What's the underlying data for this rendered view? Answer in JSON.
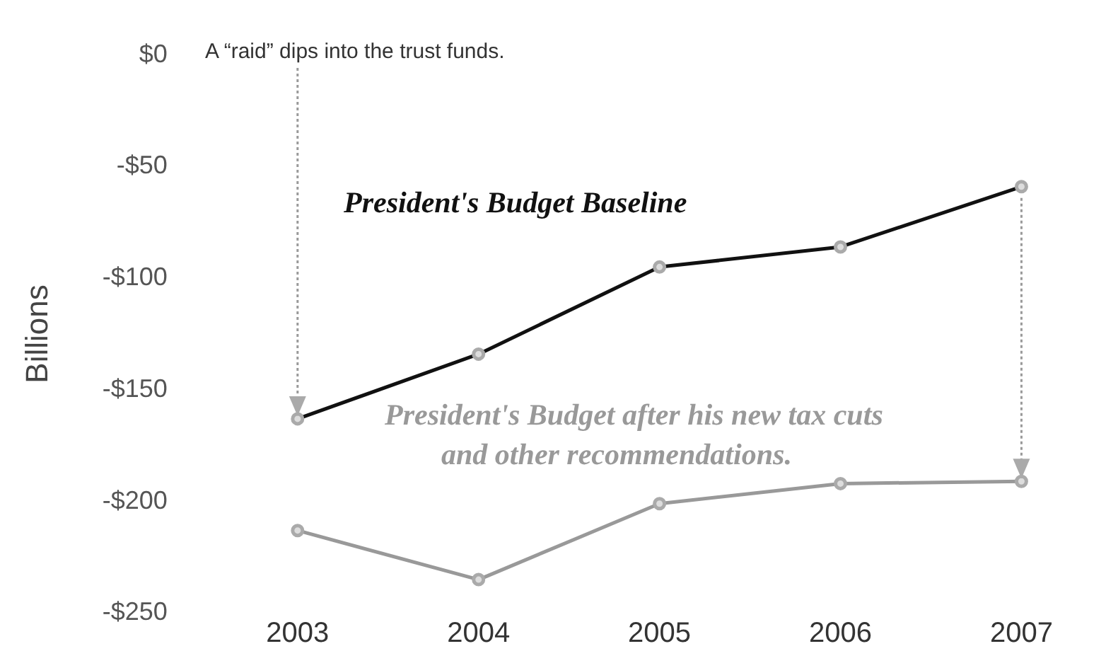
{
  "chart_data": {
    "type": "line",
    "ylabel": "Billions",
    "categories": [
      "2003",
      "2004",
      "2005",
      "2006",
      "2007"
    ],
    "ylim": [
      -250,
      0
    ],
    "yticks": [
      {
        "value": 0,
        "label": "$0"
      },
      {
        "value": -50,
        "label": "-$50"
      },
      {
        "value": -100,
        "label": "-$100"
      },
      {
        "value": -150,
        "label": "-$150"
      },
      {
        "value": -200,
        "label": "-$200"
      },
      {
        "value": -250,
        "label": "-$250"
      }
    ],
    "series": [
      {
        "name": "President's Budget Baseline",
        "color": "#111111",
        "values": [
          -163,
          -134,
          -95,
          -86,
          -59
        ]
      },
      {
        "name": "President's Budget after his new tax cuts and other recommendations.",
        "color": "#999999",
        "values": [
          -213,
          -235,
          -201,
          -192,
          -191
        ]
      }
    ],
    "annotations": [
      "A “raid” dips into the trust funds."
    ],
    "grid": false,
    "legend": false,
    "marker": "circle",
    "line_style": "solid"
  }
}
